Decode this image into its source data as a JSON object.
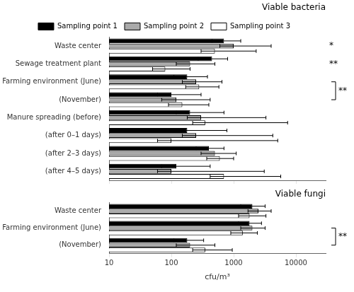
{
  "chart_data": [
    {
      "type": "bar",
      "orientation": "horizontal",
      "log": "x",
      "grid": false,
      "legend": "top",
      "tick_labels": "y",
      "title": "Viable bacteria",
      "categories": [
        "Waste center",
        "Sewage treatment plant",
        "Farming environment (June)",
        "    (November)",
        "Manure spreading (before)",
        "    (after 0–1 days)",
        "    (after 2–3 days)",
        "    (after 4–5 days)"
      ],
      "xlim": [
        10,
        30000
      ],
      "xticks": [
        10,
        100,
        1000,
        10000
      ],
      "series": [
        {
          "name": "Sampling point 1",
          "color": "#000000",
          "values": [
            700,
            450,
            180,
            100,
            200,
            180,
            400,
            120
          ],
          "err_lo": [
            250,
            180,
            70,
            40,
            80,
            70,
            150,
            50
          ],
          "err_hi": [
            600,
            350,
            200,
            200,
            500,
            600,
            300,
            300
          ]
        },
        {
          "name": "Sampling point 2",
          "color": "#aaaaaa",
          "values": [
            1000,
            200,
            250,
            120,
            300,
            250,
            500,
            100
          ],
          "err_lo": [
            400,
            80,
            100,
            50,
            120,
            100,
            200,
            40
          ],
          "err_hi": [
            3000,
            300,
            400,
            300,
            3000,
            4000,
            600,
            3000
          ]
        },
        {
          "name": "Sampling point 3",
          "color": "#ffffff",
          "values": [
            500,
            80,
            280,
            150,
            350,
            100,
            600,
            700
          ],
          "err_lo": [
            200,
            30,
            110,
            60,
            130,
            40,
            230,
            280
          ],
          "err_hi": [
            1800,
            120,
            300,
            250,
            7000,
            5000,
            400,
            5000
          ]
        }
      ],
      "annotations": [
        {
          "text": "*",
          "categories": [
            "Waste center"
          ]
        },
        {
          "text": "**",
          "categories": [
            "Sewage treatment plant"
          ]
        },
        {
          "text": "**",
          "categories": [
            "Farming environment (June)",
            "    (November)"
          ]
        }
      ]
    },
    {
      "type": "bar",
      "orientation": "horizontal",
      "log": "x",
      "grid": false,
      "title": "Viable fungi",
      "xlabel": "cfu/m³",
      "categories": [
        "Waste center",
        "Farming environment (June)",
        "    (November)"
      ],
      "xlim": [
        10,
        30000
      ],
      "xticks": [
        10,
        100,
        1000,
        10000
      ],
      "series": [
        {
          "name": "Sampling point 1",
          "color": "#000000",
          "values": [
            2000,
            1800,
            180
          ],
          "err_lo": [
            700,
            600,
            70
          ],
          "err_hi": [
            1200,
            1000,
            150
          ]
        },
        {
          "name": "Sampling point 2",
          "color": "#aaaaaa",
          "values": [
            2500,
            2000,
            200
          ],
          "err_lo": [
            800,
            700,
            80
          ],
          "err_hi": [
            1500,
            1200,
            300
          ]
        },
        {
          "name": "Sampling point 3",
          "color": "#ffffff",
          "values": [
            1800,
            1400,
            350
          ],
          "err_lo": [
            600,
            500,
            130
          ],
          "err_hi": [
            1500,
            1000,
            600
          ]
        }
      ],
      "annotations": [
        {
          "text": "**",
          "categories": [
            "Farming environment (June)",
            "    (November)"
          ]
        }
      ]
    }
  ]
}
